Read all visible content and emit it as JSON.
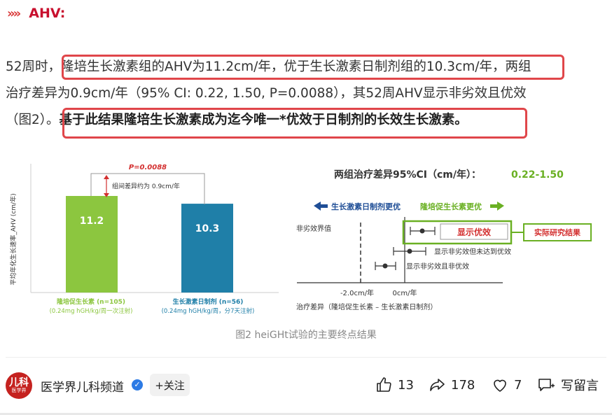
{
  "header": {
    "chevrons": "»»",
    "title": "AHV:"
  },
  "paragraph": {
    "line1_a": "52周时，",
    "line1_b": "隆培生长激素组的AHV为11.2cm/年，优于生长激素日制剂组的10.3cm/年，",
    "line1_c": "两组",
    "line2": "治疗差异为0.9cm/年（95% CI: 0.22, 1.50, P=0.0088），其52周AHV显示非劣效且优效",
    "line3_a": "（图2）。",
    "line3_b": "基于此结果隆培生长激素成为迄今唯一*优效于日制剂的长效生长激素。"
  },
  "figure": {
    "left_chart": {
      "p_value": "P=0.0088",
      "diff_label": "组间差异约为 0.9cm/年",
      "ylabel": "平均年化生长速率_AHV (cm/年)",
      "colors": {
        "bar1": "#8cc63f",
        "bar2": "#1f7fa8",
        "p": "#d32f2f"
      }
    },
    "right_chart": {
      "title": "两组治疗差异95%CI（cm/年）：",
      "range": "0.22-1.50",
      "left_arrow_label": "生长激素日制剂更优",
      "right_arrow_label": "隆培促生长素更优",
      "margin_label": "非劣效界值",
      "superior_label": "显示优效",
      "result_label": "实际研究结果",
      "case2_label": "显示非劣效但未达到优效",
      "case3_label": "显示非劣效且非优效",
      "tick1": "-2.0cm/年",
      "tick2": "0cm/年",
      "xlabel": "治疗差异（隆培促生长素 – 生长激素日制剂）",
      "colors": {
        "accent_green": "#6ab023",
        "blue": "#1f4e96",
        "red": "#d32f2f"
      }
    }
  },
  "chart_data": {
    "type": "bar",
    "categories": [
      "隆培促生长素 (n=105)",
      "生长激素日制剂 (n=56)"
    ],
    "category_sub": [
      "(0.24mg hGH/kg/周一次注射)",
      "(0.24mg hGH/kg/周，分7天注射)"
    ],
    "values": [
      11.2,
      10.3
    ],
    "ylabel": "平均年化生长速率_AHV (cm/年)"
  },
  "caption": "图2 heiGHt试验的主要终点结果",
  "footer": {
    "author": "医学界儿科频道",
    "avatar_top": "儿科",
    "avatar_bottom": "医学界",
    "follow": "+关注",
    "likes": "13",
    "shares": "178",
    "favorites": "7",
    "comment": "写留言"
  }
}
